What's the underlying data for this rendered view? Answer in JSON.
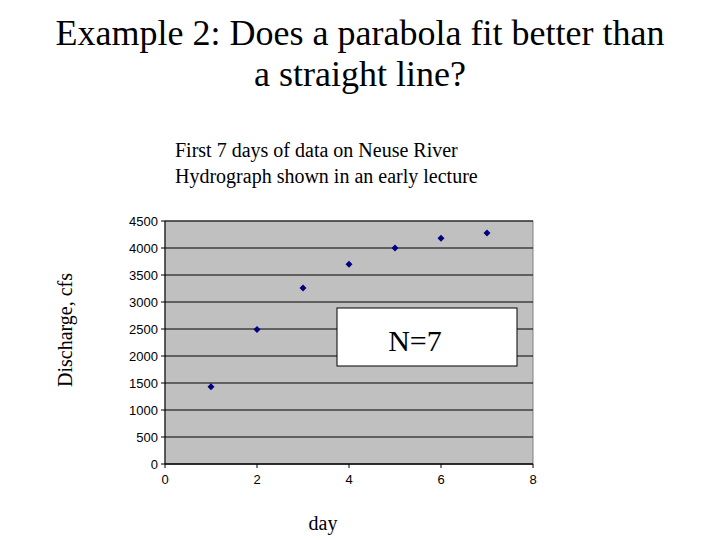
{
  "chart_data": {
    "type": "scatter",
    "title": "Example 2: Does a parabola fit better than a straight line?",
    "subtitle": "First 7 days of data on Neuse River Hydrograph shown in an early lecture",
    "x_label": "day",
    "y_label": "Discharge, cfs",
    "annotation": "N=7",
    "x": [
      1,
      2,
      3,
      4,
      5,
      6,
      7
    ],
    "values": [
      1430,
      2490,
      3260,
      3700,
      4000,
      4180,
      4280
    ],
    "color": "#000080",
    "marker": "diamond",
    "xlim": [
      0,
      8
    ],
    "xticks": [
      0,
      2,
      4,
      6,
      8
    ],
    "ylim": [
      0,
      4500
    ],
    "yticks": [
      0,
      500,
      1000,
      1500,
      2000,
      2500,
      3000,
      3500,
      4000,
      4500
    ],
    "grid": true
  }
}
